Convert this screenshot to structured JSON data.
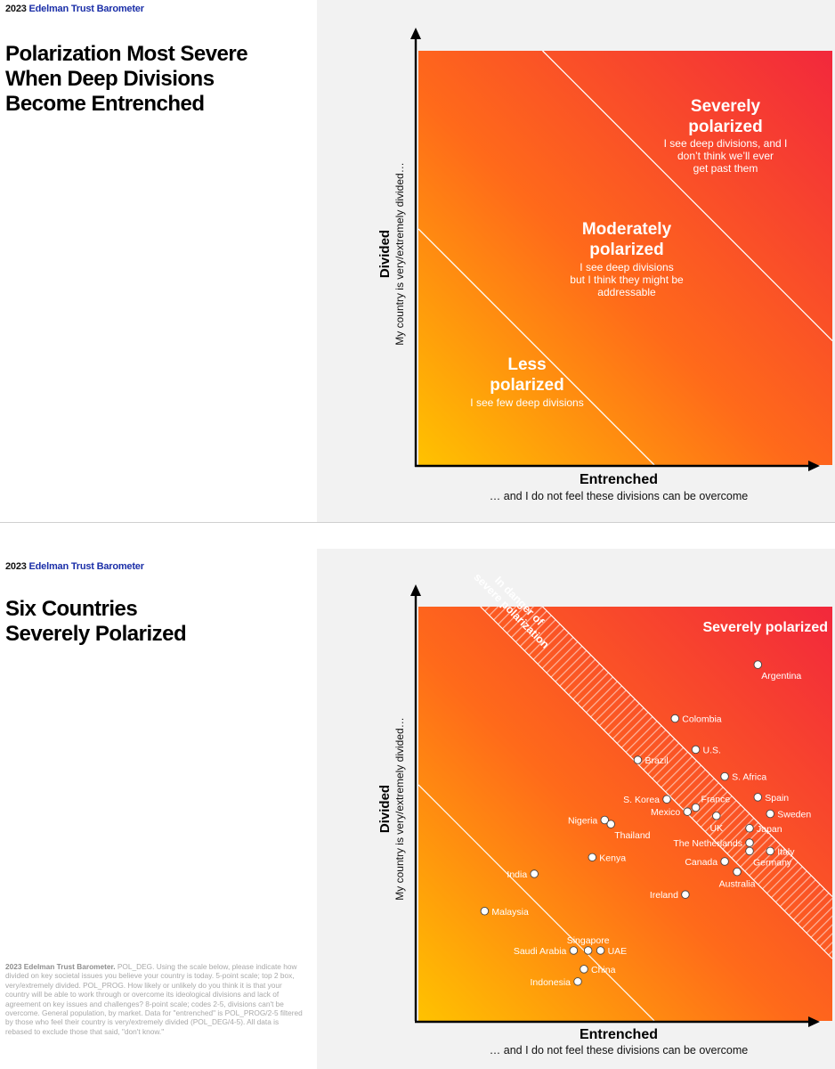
{
  "colors": {
    "brand_blue": "#1b2fa8",
    "gradient_low": "#ffc200",
    "gradient_mid": "#ff6a1a",
    "gradient_high": "#f2283c",
    "panel_grey": "#f2f2f2"
  },
  "slide1": {
    "brand_year": "2023",
    "brand_name": "Edelman Trust Barometer",
    "title_lines": [
      "Polarization Most Severe",
      "When Deep Divisions",
      "Become Entrenched"
    ],
    "y_axis_label": "Divided",
    "y_axis_sublabel": "My country is very/extremely divided…",
    "x_axis_label": "Entrenched",
    "x_axis_sublabel": "… and I do not feel these divisions can be overcome",
    "zones": {
      "severe": {
        "title_1": "Severely",
        "title_2": "polarized",
        "desc_1": "I see deep divisions, and I",
        "desc_2": "don’t think we’ll ever",
        "desc_3": "get past them"
      },
      "moderate": {
        "title_1": "Moderately",
        "title_2": "polarized",
        "desc_1": "I see deep divisions",
        "desc_2": "but I think they might be",
        "desc_3": "addressable"
      },
      "less": {
        "title_1": "Less",
        "title_2": "polarized",
        "desc_1": "I see few deep divisions"
      }
    }
  },
  "slide2": {
    "brand_year": "2023",
    "brand_name": "Edelman Trust Barometer",
    "title_lines": [
      "Six Countries",
      "Severely Polarized"
    ],
    "y_axis_label": "Divided",
    "y_axis_sublabel": "My country is very/extremely divided…",
    "x_axis_label": "Entrenched",
    "x_axis_sublabel": "… and I do not feel these divisions can be overcome",
    "severe_label": "Severely polarized",
    "danger_label_1": "In danger of",
    "danger_label_2": "severe polarization",
    "footnote_bold": "2023 Edelman Trust Barometer.",
    "footnote_text": " POL_DEG. Using the scale below, please indicate how divided on key societal issues you believe your country is today. 5-point scale; top 2 box, very/extremely divided. POL_PROG. How likely or unlikely do you think it is that your country will be able to work through or overcome its ideological divisions and lack of agreement on key issues and challenges? 8-point scale; codes 2-5, divisions can't be overcome. General population, by market. Data for \"entrenched\" is POL_PROG/2-5 filtered by those who feel their country is very/extremely divided (POL_DEG/4-5). All data is rebased to exclude those that said, \"don't know.\""
  },
  "chart_data": [
    {
      "type": "scatter",
      "title": "Polarization Most Severe When Deep Divisions Become Entrenched",
      "xlabel": "Entrenched",
      "ylabel": "Divided",
      "xlim": [
        0,
        1
      ],
      "ylim": [
        0,
        1
      ],
      "zone_boundaries": [
        {
          "intercept": 0.57,
          "slope": -1.0,
          "separates": [
            "Less polarized",
            "Moderately polarized"
          ]
        },
        {
          "intercept": 1.3,
          "slope": -1.0,
          "separates": [
            "Moderately polarized",
            "Severely polarized"
          ]
        }
      ],
      "zones": [
        "Less polarized",
        "Moderately polarized",
        "Severely polarized"
      ],
      "points": []
    },
    {
      "type": "scatter",
      "title": "Six Countries Severely Polarized",
      "xlabel": "Entrenched",
      "ylabel": "Divided",
      "xlim": [
        0,
        1
      ],
      "ylim": [
        0,
        1
      ],
      "zone_boundaries": [
        {
          "intercept": 0.57,
          "slope": -1.0
        },
        {
          "intercept": 1.15,
          "slope": -1.0
        },
        {
          "intercept": 1.3,
          "slope": -1.0
        }
      ],
      "bands": [
        {
          "name": "In danger of severe polarization",
          "from_intercept": 1.15,
          "to_intercept": 1.3,
          "pattern": "hatched"
        }
      ],
      "points": [
        {
          "label": "Argentina",
          "x": 0.82,
          "y": 0.86,
          "label_pos": "below-right"
        },
        {
          "label": "Colombia",
          "x": 0.62,
          "y": 0.73,
          "label_pos": "right"
        },
        {
          "label": "U.S.",
          "x": 0.67,
          "y": 0.655,
          "label_pos": "right"
        },
        {
          "label": "Brazil",
          "x": 0.53,
          "y": 0.63,
          "label_pos": "right"
        },
        {
          "label": "S. Africa",
          "x": 0.74,
          "y": 0.59,
          "label_pos": "right"
        },
        {
          "label": "Spain",
          "x": 0.82,
          "y": 0.54,
          "label_pos": "right"
        },
        {
          "label": "S. Korea",
          "x": 0.6,
          "y": 0.535,
          "label_pos": "left"
        },
        {
          "label": "France",
          "x": 0.67,
          "y": 0.515,
          "label_pos": "above-right"
        },
        {
          "label": "Mexico",
          "x": 0.65,
          "y": 0.505,
          "label_pos": "left"
        },
        {
          "label": "Sweden",
          "x": 0.85,
          "y": 0.5,
          "label_pos": "right"
        },
        {
          "label": "UK",
          "x": 0.72,
          "y": 0.495,
          "label_pos": "below"
        },
        {
          "label": "Japan",
          "x": 0.8,
          "y": 0.465,
          "label_pos": "right"
        },
        {
          "label": "Nigeria",
          "x": 0.45,
          "y": 0.485,
          "label_pos": "left"
        },
        {
          "label": "Thailand",
          "x": 0.465,
          "y": 0.475,
          "label_pos": "below-right"
        },
        {
          "label": "The Netherlands",
          "x": 0.8,
          "y": 0.43,
          "label_pos": "left"
        },
        {
          "label": "Italy",
          "x": 0.85,
          "y": 0.41,
          "label_pos": "right"
        },
        {
          "label": "Germany",
          "x": 0.8,
          "y": 0.41,
          "label_pos": "below-right"
        },
        {
          "label": "Canada",
          "x": 0.74,
          "y": 0.385,
          "label_pos": "left"
        },
        {
          "label": "Kenya",
          "x": 0.42,
          "y": 0.395,
          "label_pos": "right"
        },
        {
          "label": "Australia",
          "x": 0.77,
          "y": 0.36,
          "label_pos": "below"
        },
        {
          "label": "India",
          "x": 0.28,
          "y": 0.355,
          "label_pos": "left"
        },
        {
          "label": "Ireland",
          "x": 0.645,
          "y": 0.305,
          "label_pos": "left"
        },
        {
          "label": "Malaysia",
          "x": 0.16,
          "y": 0.265,
          "label_pos": "right"
        },
        {
          "label": "Singapore",
          "x": 0.41,
          "y": 0.17,
          "label_pos": "above"
        },
        {
          "label": "Saudi Arabia",
          "x": 0.375,
          "y": 0.17,
          "label_pos": "left"
        },
        {
          "label": "UAE",
          "x": 0.44,
          "y": 0.17,
          "label_pos": "right"
        },
        {
          "label": "China",
          "x": 0.4,
          "y": 0.125,
          "label_pos": "right"
        },
        {
          "label": "Indonesia",
          "x": 0.385,
          "y": 0.095,
          "label_pos": "left"
        }
      ]
    }
  ]
}
